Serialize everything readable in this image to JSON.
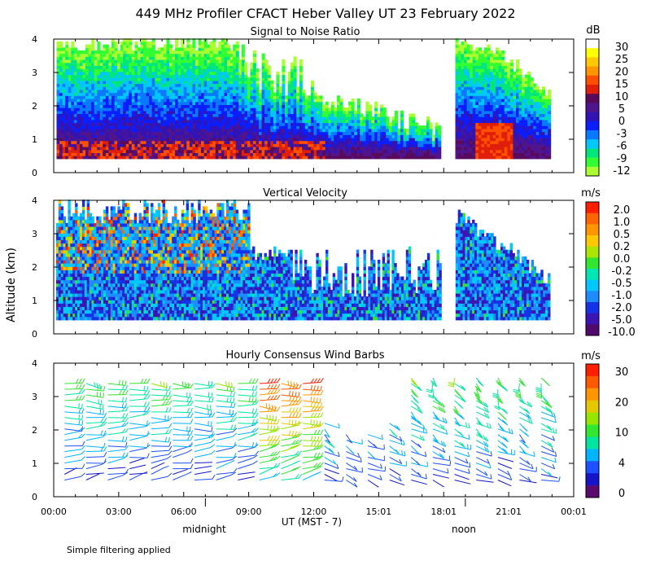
{
  "title": "449 MHz Profiler CFACT Heber Valley UT 23 February 2022",
  "footer_note": "Simple filtering applied",
  "x_axis": {
    "label": "UT  (MST - 7)",
    "ticks": [
      "00:00",
      "03:00",
      "06:00",
      "09:00",
      "12:00",
      "15:01",
      "18:01",
      "21:01",
      "00:01"
    ],
    "markers": [
      "midnight",
      "noon"
    ]
  },
  "y_axis": {
    "label": "Altitude (km)",
    "ticks": [
      "0",
      "1",
      "2",
      "3",
      "4"
    ]
  },
  "chart_data": [
    {
      "type": "heatmap",
      "title": "Signal to Noise Ratio",
      "xlabel": "UT  (MST - 7)",
      "ylabel": "Altitude (km)",
      "xlim": [
        0,
        24
      ],
      "ylim": [
        0,
        4
      ],
      "data_gap_hours": [
        17.8,
        18.5
      ],
      "colorbar": {
        "unit": "dB",
        "tick_labels": [
          "30",
          "25",
          "20",
          "15",
          "10",
          "5",
          "0",
          "-3",
          "-6",
          "-9",
          "-12"
        ],
        "colors": [
          "#ffffff",
          "#ffff00",
          "#ffc800",
          "#ff9600",
          "#ff5000",
          "#e11e0a",
          "#5a0a5a",
          "#50148c",
          "#3214b4",
          "#0a1eff",
          "#0a78ff",
          "#00c8ff",
          "#00e67d",
          "#32ff32",
          "#aaff32"
        ]
      }
    },
    {
      "type": "heatmap",
      "title": "Vertical Velocity",
      "xlabel": "UT  (MST - 7)",
      "ylabel": "Altitude (km)",
      "xlim": [
        0,
        24
      ],
      "ylim": [
        0,
        4
      ],
      "data_gap_hours": [
        17.8,
        18.5
      ],
      "colorbar": {
        "unit": "m/s",
        "tick_labels": [
          "2.0",
          "1.0",
          "0.5",
          "0.2",
          "0.0",
          "-0.2",
          "-0.5",
          "-1.0",
          "-2.0",
          "-5.0",
          "-10.0"
        ],
        "colors": [
          "#ff1e00",
          "#ff6400",
          "#ff9600",
          "#ffc800",
          "#aae600",
          "#32e632",
          "#00e6b4",
          "#00c8ff",
          "#1e8cff",
          "#1432e6",
          "#3c14b4",
          "#500a6e"
        ]
      }
    },
    {
      "type": "scatter",
      "title": "Hourly Consensus Wind Barbs",
      "xlabel": "UT  (MST - 7)",
      "ylabel": "Altitude (km)",
      "xlim": [
        0,
        24
      ],
      "ylim": [
        0,
        4
      ],
      "colorbar": {
        "unit": "m/s",
        "tick_labels": [
          "30",
          "20",
          "10",
          "4",
          "0"
        ],
        "colors": [
          "#ff1e00",
          "#ff5a00",
          "#ff9600",
          "#e6c800",
          "#96e600",
          "#32e632",
          "#00e6a0",
          "#00b4ff",
          "#1e50ff",
          "#1414c8",
          "#5a0a6e"
        ]
      }
    }
  ]
}
